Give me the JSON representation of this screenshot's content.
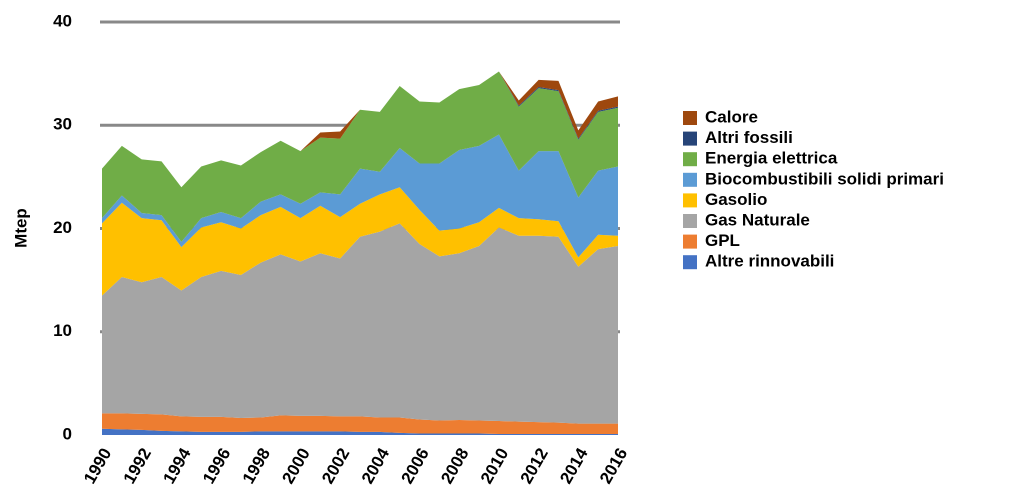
{
  "chart_data": {
    "type": "stacked_area",
    "y_label": "Mtep",
    "x": [
      1990,
      1991,
      1992,
      1993,
      1994,
      1995,
      1996,
      1997,
      1998,
      1999,
      2000,
      2001,
      2002,
      2003,
      2004,
      2005,
      2006,
      2007,
      2008,
      2009,
      2010,
      2011,
      2012,
      2013,
      2014,
      2015,
      2016
    ],
    "xlim": [
      1990,
      2016
    ],
    "xticks": [
      1990,
      1992,
      1994,
      1996,
      1998,
      2000,
      2002,
      2004,
      2006,
      2008,
      2010,
      2012,
      2014,
      2016
    ],
    "ylim": [
      0,
      40
    ],
    "yticks": [
      0,
      10,
      20,
      30,
      40
    ],
    "grid": true,
    "legend": "right",
    "series": [
      {
        "name": "Altre rinnovabili",
        "color": "#4472c4",
        "values": [
          0.6,
          0.55,
          0.5,
          0.4,
          0.35,
          0.3,
          0.3,
          0.3,
          0.35,
          0.35,
          0.35,
          0.35,
          0.35,
          0.3,
          0.3,
          0.2,
          0.15,
          0.15,
          0.15,
          0.15,
          0.1,
          0.1,
          0.1,
          0.1,
          0.1,
          0.1,
          0.1
        ]
      },
      {
        "name": "GPL",
        "color": "#ed7d31",
        "values": [
          1.5,
          1.55,
          1.55,
          1.6,
          1.45,
          1.45,
          1.45,
          1.35,
          1.35,
          1.55,
          1.5,
          1.5,
          1.45,
          1.5,
          1.4,
          1.5,
          1.35,
          1.25,
          1.3,
          1.25,
          1.25,
          1.2,
          1.15,
          1.1,
          1.0,
          1.0,
          1.0
        ]
      },
      {
        "name": "Gas Naturale",
        "color": "#a5a5a5",
        "values": [
          11.4,
          13.2,
          12.75,
          13.3,
          12.2,
          13.55,
          14.15,
          13.85,
          15.0,
          15.6,
          14.95,
          15.75,
          15.3,
          17.4,
          18.0,
          18.8,
          17.0,
          15.9,
          16.15,
          16.9,
          18.75,
          18.0,
          18.05,
          18.0,
          15.2,
          16.9,
          17.2
        ]
      },
      {
        "name": "Gasolio",
        "color": "#ffc000",
        "values": [
          7.0,
          7.2,
          6.2,
          5.5,
          4.2,
          4.8,
          4.7,
          4.5,
          4.6,
          4.6,
          4.2,
          4.6,
          4.0,
          3.2,
          3.6,
          3.5,
          3.3,
          2.5,
          2.4,
          2.3,
          1.9,
          1.7,
          1.6,
          1.5,
          0.9,
          1.4,
          1.0
        ]
      },
      {
        "name": "Biocombustibili solidi primari",
        "color": "#5b9bd5",
        "values": [
          0.5,
          0.7,
          0.5,
          0.5,
          0.5,
          0.9,
          1.0,
          1.0,
          1.3,
          1.2,
          1.4,
          1.3,
          2.2,
          3.4,
          2.2,
          3.8,
          4.5,
          6.5,
          7.6,
          7.4,
          7.1,
          4.6,
          6.6,
          6.8,
          5.8,
          6.2,
          6.7
        ]
      },
      {
        "name": "Energia elettrica",
        "color": "#70ad47",
        "values": [
          4.8,
          4.8,
          5.2,
          5.2,
          5.3,
          5.0,
          5.0,
          5.1,
          4.8,
          5.2,
          5.1,
          5.3,
          5.4,
          5.7,
          5.8,
          6.0,
          6.0,
          5.9,
          5.9,
          5.9,
          6.1,
          6.2,
          6.1,
          5.8,
          5.6,
          5.7,
          5.7
        ]
      },
      {
        "name": "Altri fossili",
        "color": "#264478",
        "values": [
          0,
          0,
          0,
          0,
          0,
          0,
          0,
          0,
          0,
          0,
          0,
          0,
          0,
          0,
          0,
          0,
          0,
          0,
          0,
          0,
          0,
          0.1,
          0.1,
          0.1,
          0.1,
          0.1,
          0.1
        ]
      },
      {
        "name": "Calore",
        "color": "#9e480e",
        "values": [
          0,
          0,
          0,
          0,
          0,
          0,
          0,
          0,
          0,
          0,
          0,
          0.5,
          0.7,
          0,
          0,
          0,
          0,
          0,
          0,
          0,
          0,
          0.5,
          0.7,
          0.9,
          0.8,
          0.9,
          1.0
        ]
      }
    ]
  }
}
